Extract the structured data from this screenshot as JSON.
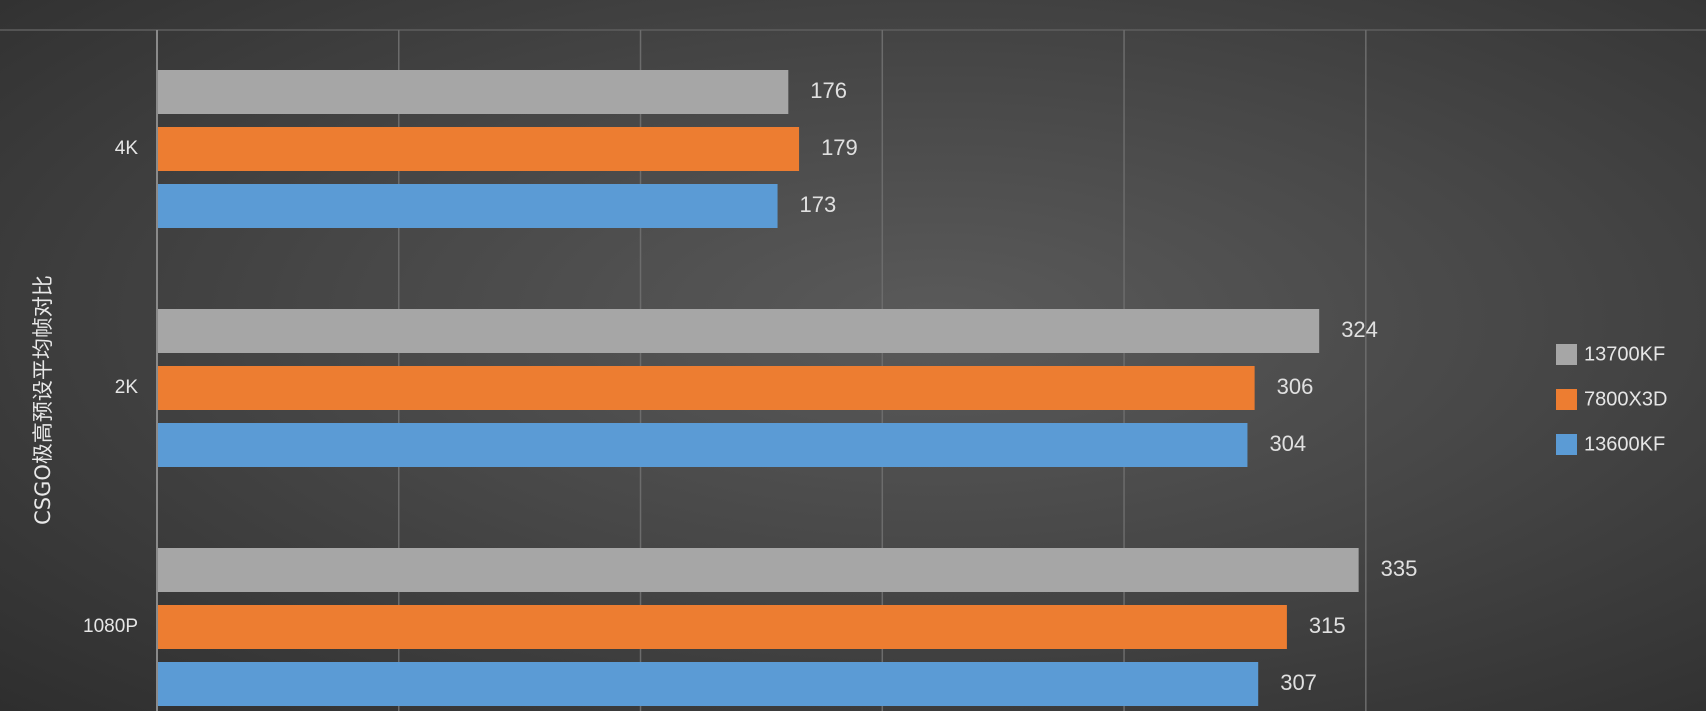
{
  "chart_data": {
    "type": "bar",
    "orientation": "horizontal",
    "title": "",
    "ylabel": "CSGO极高预设平均帧对比",
    "xlabel": "",
    "categories": [
      "4K",
      "2K",
      "1080P"
    ],
    "series": [
      {
        "name": "13700KF",
        "color": "#a6a6a6",
        "values": [
          176,
          324,
          335
        ]
      },
      {
        "name": "7800X3D",
        "color": "#ed7d31",
        "values": [
          179,
          306,
          315
        ]
      },
      {
        "name": "13600KF",
        "color": "#5b9bd5",
        "values": [
          173,
          304,
          307
        ]
      }
    ],
    "xlim": [
      0,
      400
    ],
    "x_gridlines": [
      0,
      67.4,
      134.8,
      202.2,
      269.6,
      337
    ],
    "grid": true,
    "legend_position": "right",
    "data_labels": true
  }
}
